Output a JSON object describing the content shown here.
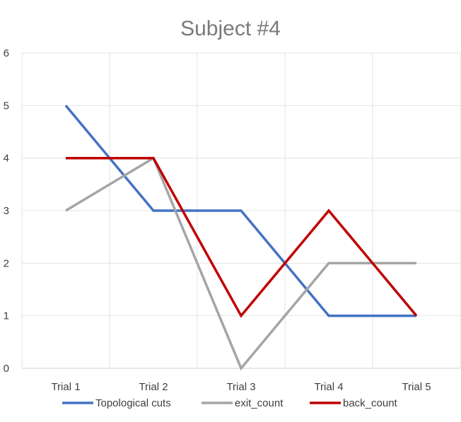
{
  "chart_data": {
    "type": "line",
    "title": "Subject #4",
    "xlabel": "",
    "ylabel": "",
    "categories": [
      "Trial 1",
      "Trial 2",
      "Trial 3",
      "Trial 4",
      "Trial 5"
    ],
    "ylim": [
      0,
      6
    ],
    "yticks": [
      "0",
      "1",
      "2",
      "3",
      "4",
      "5",
      "6"
    ],
    "grid": true,
    "legend_position": "bottom",
    "series": [
      {
        "name": "Topological cuts",
        "color": "#4472C4",
        "values": [
          5,
          3,
          3,
          1,
          1
        ]
      },
      {
        "name": "exit_count",
        "color": "#A5A5A5",
        "values": [
          3,
          4,
          0,
          2,
          2
        ]
      },
      {
        "name": "back_count",
        "color": "#C00000",
        "values": [
          4,
          4,
          1,
          3,
          1
        ]
      }
    ]
  }
}
